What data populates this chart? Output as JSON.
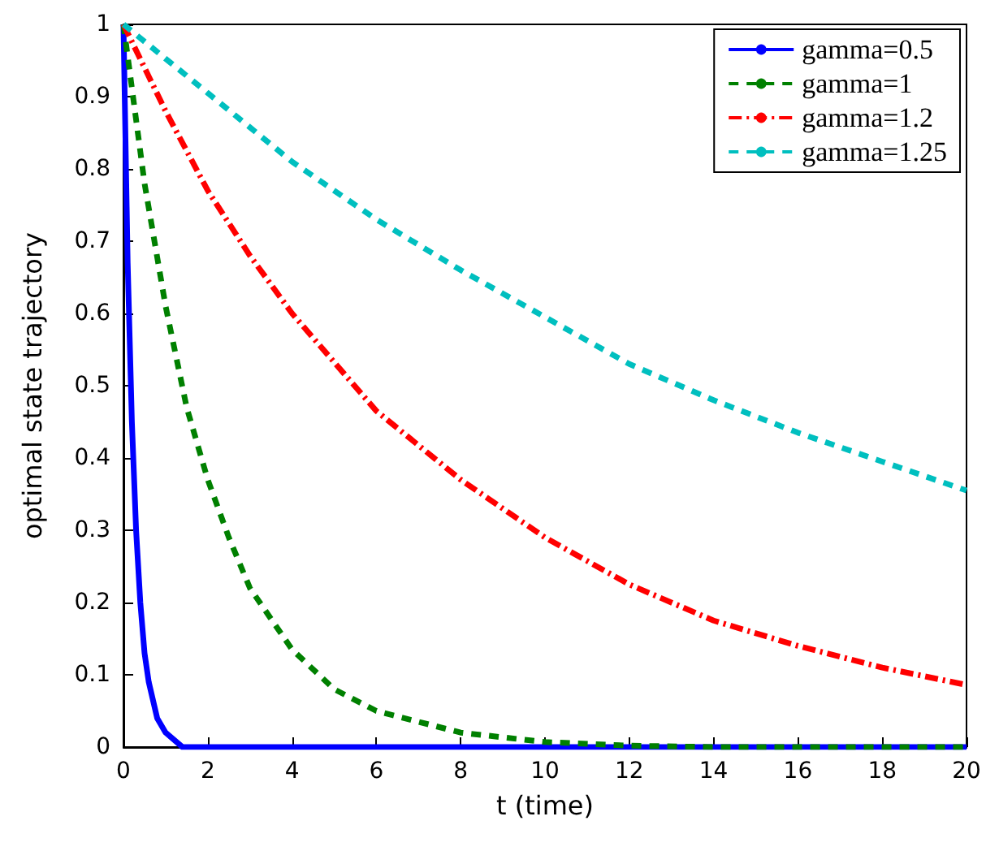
{
  "chart_data": {
    "type": "line",
    "xlabel": "t (time)",
    "ylabel": "optimal state trajectory",
    "xlim": [
      0,
      20
    ],
    "xticks": [
      0,
      2,
      4,
      6,
      8,
      10,
      12,
      14,
      16,
      18,
      20
    ],
    "ylim": [
      0,
      1
    ],
    "yticks": [
      0,
      0.1,
      0.2,
      0.3,
      0.4,
      0.5,
      0.6,
      0.7,
      0.8,
      0.9,
      1
    ],
    "grid": false,
    "legend": "top right",
    "marker": "none",
    "series": [
      {
        "name": "gamma=0.5",
        "color": "#0000ff",
        "line_style": "solid",
        "x": [
          0,
          0.1,
          0.2,
          0.3,
          0.4,
          0.5,
          0.6,
          0.8,
          1,
          1.4,
          20
        ],
        "values": [
          1,
          0.67,
          0.45,
          0.3,
          0.2,
          0.13,
          0.09,
          0.04,
          0.02,
          0,
          0
        ]
      },
      {
        "name": "gamma=1",
        "color": "#008000",
        "line_style": "dashed",
        "x": [
          0,
          0.5,
          1,
          1.5,
          2,
          2.5,
          3,
          4,
          5,
          6,
          8,
          10,
          12,
          14,
          20
        ],
        "values": [
          1,
          0.78,
          0.61,
          0.47,
          0.37,
          0.29,
          0.22,
          0.135,
          0.08,
          0.05,
          0.02,
          0.007,
          0.002,
          0,
          0
        ]
      },
      {
        "name": "gamma=1.2",
        "color": "#ff0000",
        "line_style": "dashdot",
        "x": [
          0,
          1,
          2,
          3,
          4,
          6,
          8,
          10,
          12,
          14,
          16,
          18,
          20
        ],
        "values": [
          1,
          0.88,
          0.77,
          0.68,
          0.6,
          0.465,
          0.37,
          0.29,
          0.225,
          0.175,
          0.14,
          0.11,
          0.086
        ]
      },
      {
        "name": "gamma=1.25",
        "color": "#00bfbf",
        "line_style": "dashed",
        "x": [
          0,
          2,
          4,
          6,
          8,
          10,
          12,
          14,
          16,
          18,
          20
        ],
        "values": [
          1,
          0.905,
          0.81,
          0.73,
          0.66,
          0.595,
          0.53,
          0.48,
          0.435,
          0.395,
          0.355
        ]
      }
    ]
  }
}
